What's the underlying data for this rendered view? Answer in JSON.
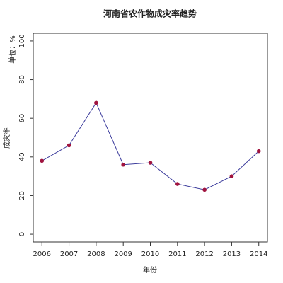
{
  "chart_data": {
    "type": "line",
    "title": "河南省农作物成灾率趋势",
    "x_label": "年份",
    "y_label": "成灾率",
    "unit_label": "单位：%",
    "x": [
      2006,
      2007,
      2008,
      2009,
      2010,
      2011,
      2012,
      2013,
      2014
    ],
    "series": [
      {
        "color": "#3b3b9c",
        "marker_color": "#a0143f",
        "values": [
          38,
          46,
          68,
          36,
          37,
          26,
          23,
          30,
          43
        ]
      }
    ],
    "xlim": [
      2005.68,
      2014.32
    ],
    "ylim": [
      -4,
      104
    ],
    "xticks": [
      2006,
      2007,
      2008,
      2009,
      2010,
      2011,
      2012,
      2013,
      2014
    ],
    "yticks": [
      0,
      20,
      40,
      60,
      80,
      100
    ]
  }
}
